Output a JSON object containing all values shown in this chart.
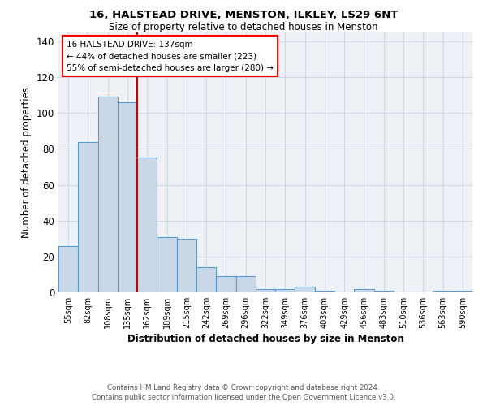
{
  "title1": "16, HALSTEAD DRIVE, MENSTON, ILKLEY, LS29 6NT",
  "title2": "Size of property relative to detached houses in Menston",
  "xlabel": "Distribution of detached houses by size in Menston",
  "ylabel": "Number of detached properties",
  "footnote1": "Contains HM Land Registry data © Crown copyright and database right 2024.",
  "footnote2": "Contains public sector information licensed under the Open Government Licence v3.0.",
  "annotation_line1": "16 HALSTEAD DRIVE: 137sqm",
  "annotation_line2": "← 44% of detached houses are smaller (223)",
  "annotation_line3": "55% of semi-detached houses are larger (280) →",
  "bar_color": "#c9d9e8",
  "bar_edge_color": "#5b9bd5",
  "vline_color": "#cc0000",
  "vline_x": 3.5,
  "categories": [
    "55sqm",
    "82sqm",
    "108sqm",
    "135sqm",
    "162sqm",
    "189sqm",
    "215sqm",
    "242sqm",
    "269sqm",
    "296sqm",
    "322sqm",
    "349sqm",
    "376sqm",
    "403sqm",
    "429sqm",
    "456sqm",
    "483sqm",
    "510sqm",
    "536sqm",
    "563sqm",
    "590sqm"
  ],
  "values": [
    26,
    84,
    109,
    106,
    75,
    31,
    30,
    14,
    9,
    9,
    2,
    2,
    3,
    1,
    0,
    2,
    1,
    0,
    0,
    1,
    1
  ],
  "ylim": [
    0,
    145
  ],
  "yticks": [
    0,
    20,
    40,
    60,
    80,
    100,
    120,
    140
  ],
  "grid_color": "#d0d8e0",
  "background_color": "#eef2f7"
}
